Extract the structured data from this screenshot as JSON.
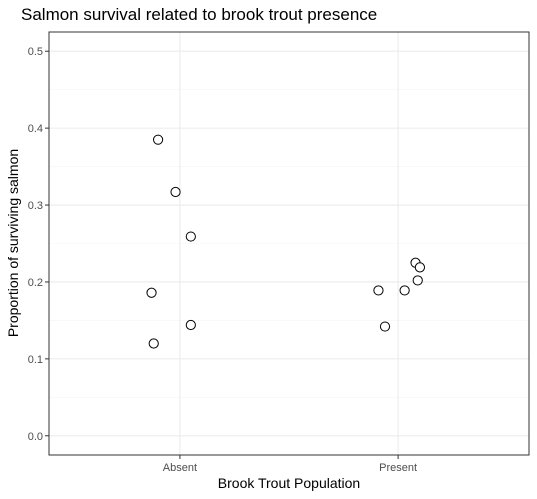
{
  "chart_data": {
    "type": "scatter",
    "title": "Salmon survival related to brook trout presence",
    "xlabel": "Brook Trout Population",
    "ylabel": "Proportion of surviving salmon",
    "categories": [
      "Absent",
      "Present"
    ],
    "ylim": [
      -0.025,
      0.525
    ],
    "yticks": [
      0.0,
      0.1,
      0.2,
      0.3,
      0.4,
      0.5
    ],
    "ytick_labels": [
      "0.0",
      "0.1",
      "0.2",
      "0.3",
      "0.4",
      "0.5"
    ],
    "grid": true,
    "jitter": true,
    "points": [
      {
        "category": "Absent",
        "jitter": -0.1,
        "y": 0.385
      },
      {
        "category": "Absent",
        "jitter": -0.02,
        "y": 0.317
      },
      {
        "category": "Absent",
        "jitter": 0.05,
        "y": 0.259
      },
      {
        "category": "Absent",
        "jitter": -0.13,
        "y": 0.186
      },
      {
        "category": "Absent",
        "jitter": 0.05,
        "y": 0.144
      },
      {
        "category": "Absent",
        "jitter": -0.12,
        "y": 0.12
      },
      {
        "category": "Present",
        "jitter": 0.08,
        "y": 0.225
      },
      {
        "category": "Present",
        "jitter": 0.1,
        "y": 0.219
      },
      {
        "category": "Present",
        "jitter": 0.09,
        "y": 0.202
      },
      {
        "category": "Present",
        "jitter": -0.09,
        "y": 0.189
      },
      {
        "category": "Present",
        "jitter": 0.03,
        "y": 0.189
      },
      {
        "category": "Present",
        "jitter": -0.06,
        "y": 0.142
      }
    ],
    "colors": {
      "panel_border": "#333333",
      "grid_major": "#ebebeb",
      "grid_minor": "#f5f5f5",
      "tick": "#333333",
      "point_stroke": "#000000",
      "point_fill": "#ffffff"
    }
  }
}
